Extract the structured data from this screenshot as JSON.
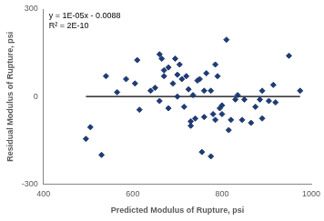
{
  "chart_data": {
    "type": "scatter",
    "x_label": "Predicted Modulus of Rupture, psi",
    "y_label": "Residual Modulus of Rupture, psi",
    "annotations": [
      "y = 1E-05x - 0.0088",
      "R² = 2E-10"
    ],
    "xlim": [
      400,
      1000
    ],
    "xticks": [
      400,
      600,
      800,
      1000
    ],
    "ylim": [
      -300,
      300
    ],
    "yticks": [
      -300,
      0,
      300
    ],
    "grid": false,
    "series": [
      {
        "type": "scatter",
        "marker": "diamond",
        "color": "#1f3b73",
        "x": [
          495,
          505,
          530,
          540,
          565,
          585,
          605,
          610,
          615,
          640,
          650,
          660,
          660,
          665,
          670,
          670,
          680,
          680,
          690,
          695,
          700,
          700,
          705,
          710,
          715,
          720,
          725,
          730,
          730,
          735,
          740,
          745,
          750,
          755,
          760,
          760,
          765,
          775,
          775,
          780,
          785,
          785,
          790,
          795,
          800,
          800,
          810,
          815,
          820,
          830,
          835,
          845,
          850,
          865,
          875,
          885,
          890,
          890,
          905,
          915,
          920,
          950,
          975
        ],
        "values": [
          -145,
          -105,
          -200,
          70,
          15,
          60,
          45,
          125,
          -45,
          20,
          30,
          145,
          -15,
          130,
          90,
          70,
          100,
          -40,
          45,
          130,
          75,
          0,
          110,
          60,
          -35,
          70,
          25,
          -100,
          -85,
          5,
          -75,
          55,
          60,
          -190,
          20,
          -70,
          80,
          20,
          -205,
          -60,
          -80,
          110,
          70,
          -40,
          -30,
          -60,
          195,
          -115,
          -80,
          -10,
          5,
          -80,
          -10,
          -90,
          -35,
          -10,
          20,
          -75,
          -15,
          40,
          -20,
          140,
          20
        ]
      },
      {
        "type": "line",
        "line_style": "solid",
        "color": "#000000",
        "x": [
          495,
          975
        ],
        "values": [
          0,
          0
        ]
      }
    ]
  }
}
